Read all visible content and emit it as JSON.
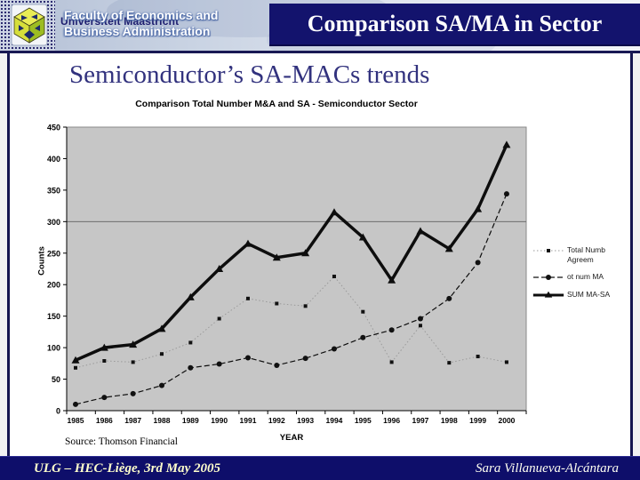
{
  "header": {
    "university_name": "Universiteit Maastricht",
    "faculty_line1": "Faculty of Economics and",
    "faculty_line2": "Business Administration",
    "title": "Comparison SA/MA in Sector"
  },
  "slide": {
    "title": "Semiconductor’s SA-MACs trends",
    "source_note": "Source: Thomson Financial"
  },
  "footer": {
    "left": "ULG – HEC-Liège, 3rd May 2005",
    "right": "Sara Villanueva-Alcántara"
  },
  "colors": {
    "navy": "#13136d",
    "footer_bar": "#0e0e6a",
    "slide_title": "#32327e",
    "plot_background": "#c6c6c6",
    "gridline": "#6e6e6e",
    "series_dotted_line": "#9a9a9a",
    "series_black": "#0d0d0d",
    "footer_text": "#ffffcc"
  },
  "chart_data": {
    "type": "line",
    "title": "Comparison Total Number M&A and SA - Semiconductor Sector",
    "xlabel": "YEAR",
    "ylabel": "Counts",
    "ylim": [
      0,
      450
    ],
    "ytick_step": 50,
    "gridline_y": 300,
    "grid": "single horizontal line at 300",
    "legend_position": "right",
    "plot_bg": "#c6c6c6",
    "categories": [
      "1985",
      "1986",
      "1987",
      "1988",
      "1989",
      "1990",
      "1991",
      "1992",
      "1993",
      "1994",
      "1995",
      "1996",
      "1997",
      "1998",
      "1999",
      "2000"
    ],
    "series": [
      {
        "name": "Total Numb Agreem",
        "legend_lines": [
          "Total Numb",
          "Agreem"
        ],
        "line_style": "dotted",
        "marker": "square",
        "values": [
          68,
          79,
          77,
          90,
          108,
          146,
          178,
          170,
          166,
          213,
          157,
          77,
          135,
          76,
          86,
          77
        ]
      },
      {
        "name": "ot num MA",
        "legend_lines": [
          "ot num MA"
        ],
        "line_style": "dashed",
        "marker": "circle",
        "values": [
          10,
          21,
          27,
          40,
          68,
          74,
          84,
          72,
          83,
          98,
          116,
          128,
          146,
          178,
          235,
          344
        ]
      },
      {
        "name": "SUM MA-SA",
        "legend_lines": [
          "SUM MA-SA"
        ],
        "line_style": "solid-thick",
        "marker": "triangle",
        "values": [
          80,
          100,
          105,
          130,
          180,
          225,
          265,
          243,
          250,
          315,
          275,
          207,
          285,
          257,
          320,
          422
        ]
      }
    ]
  }
}
